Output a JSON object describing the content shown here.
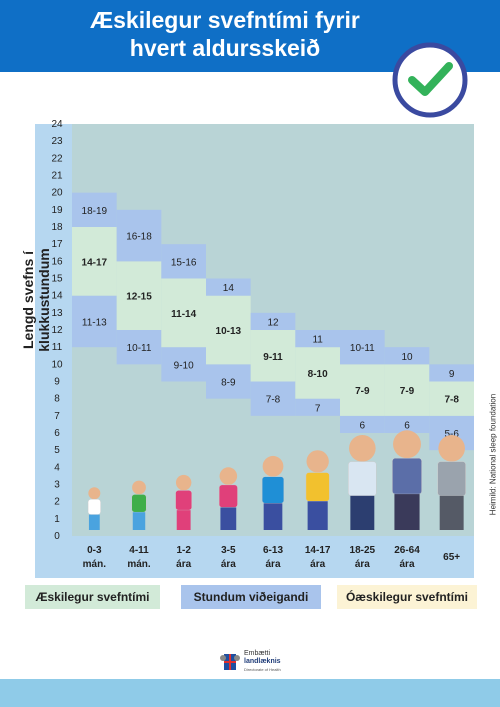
{
  "title": "Æskilegur svefntími fyrir hvert aldursskeið",
  "y_axis_label": "Lengd svefns í klukkustundum",
  "credit": "Heimild: National sleep foundation",
  "legend": {
    "recommended": "Æskilegur svefntími",
    "may_be_appropriate": "Stundum viðeigandi",
    "not_recommended": "Óæskilegur svefntími"
  },
  "logo": {
    "line1": "Embætti",
    "line2": "landlæknis",
    "line3": "Directorate of Health"
  },
  "colors": {
    "header": "#0f6fc6",
    "not_recommended_area": "#b9d4d6",
    "recommended": "#d2ead8",
    "may_be_appropriate": "#a9c4ec",
    "legend_not_recommended": "#fcf3d5",
    "footer": "#8fcbe8"
  },
  "chart_data": {
    "type": "bar",
    "ylabel": "Lengd svefns í klukkustundum",
    "ylim": [
      0,
      24
    ],
    "y_ticks": [
      0,
      1,
      2,
      3,
      4,
      5,
      6,
      7,
      8,
      9,
      10,
      11,
      12,
      13,
      14,
      15,
      16,
      17,
      18,
      19,
      20,
      21,
      22,
      23,
      24
    ],
    "categories": [
      [
        "0-3",
        "mán."
      ],
      [
        "4-11",
        "mán."
      ],
      [
        "1-2",
        "ára"
      ],
      [
        "3-5",
        "ára"
      ],
      [
        "6-13",
        "ára"
      ],
      [
        "14-17",
        "ára"
      ],
      [
        "18-25",
        "ára"
      ],
      [
        "26-64",
        "ára"
      ],
      [
        "65+"
      ]
    ],
    "groups": [
      {
        "category": "0-3 mán.",
        "recommended": [
          14,
          17
        ],
        "recommended_label": "14-17",
        "low": [
          11,
          13
        ],
        "low_label": "11-13",
        "high": [
          18,
          19
        ],
        "high_label": "18-19"
      },
      {
        "category": "4-11 mán.",
        "recommended": [
          12,
          15
        ],
        "recommended_label": "12-15",
        "low": [
          10,
          11
        ],
        "low_label": "10-11",
        "high": [
          16,
          18
        ],
        "high_label": "16-18"
      },
      {
        "category": "1-2 ára",
        "recommended": [
          11,
          14
        ],
        "recommended_label": "11-14",
        "low": [
          9,
          10
        ],
        "low_label": "9-10",
        "high": [
          15,
          16
        ],
        "high_label": "15-16"
      },
      {
        "category": "3-5 ára",
        "recommended": [
          10,
          13
        ],
        "recommended_label": "10-13",
        "low": [
          8,
          9
        ],
        "low_label": "8-9",
        "high": [
          14,
          14
        ],
        "high_label": "14"
      },
      {
        "category": "6-13 ára",
        "recommended": [
          9,
          11
        ],
        "recommended_label": "9-11",
        "low": [
          7,
          8
        ],
        "low_label": "7-8",
        "high": [
          12,
          12
        ],
        "high_label": "12"
      },
      {
        "category": "14-17 ára",
        "recommended": [
          8,
          10
        ],
        "recommended_label": "8-10",
        "low": [
          7,
          7
        ],
        "low_label": "7",
        "high": [
          11,
          11
        ],
        "high_label": "11"
      },
      {
        "category": "18-25 ára",
        "recommended": [
          7,
          9
        ],
        "recommended_label": "7-9",
        "low": [
          6,
          6
        ],
        "low_label": "6",
        "high": [
          10,
          11
        ],
        "high_label": "10-11"
      },
      {
        "category": "26-64 ára",
        "recommended": [
          7,
          9
        ],
        "recommended_label": "7-9",
        "low": [
          6,
          6
        ],
        "low_label": "6",
        "high": [
          10,
          10
        ],
        "high_label": "10"
      },
      {
        "category": "65+",
        "recommended": [
          7,
          8
        ],
        "recommended_label": "7-8",
        "low": [
          5,
          6
        ],
        "low_label": "5-6",
        "high": [
          9,
          9
        ],
        "high_label": "9"
      }
    ],
    "figure_colors": [
      {
        "shirt": "#ffffff",
        "pants": "#4aa3df"
      },
      {
        "shirt": "#3fae49",
        "pants": "#4aa3df"
      },
      {
        "shirt": "#e0407a",
        "pants": "#e0407a"
      },
      {
        "shirt": "#e0407a",
        "pants": "#3a4fa0"
      },
      {
        "shirt": "#1f8fd6",
        "pants": "#3a4fa0"
      },
      {
        "shirt": "#f2c12e",
        "pants": "#3a4fa0"
      },
      {
        "shirt": "#d9e6f2",
        "pants": "#2c3e70"
      },
      {
        "shirt": "#5b6ea8",
        "pants": "#3a3a5a"
      },
      {
        "shirt": "#9aa3ad",
        "pants": "#555a66"
      }
    ]
  }
}
